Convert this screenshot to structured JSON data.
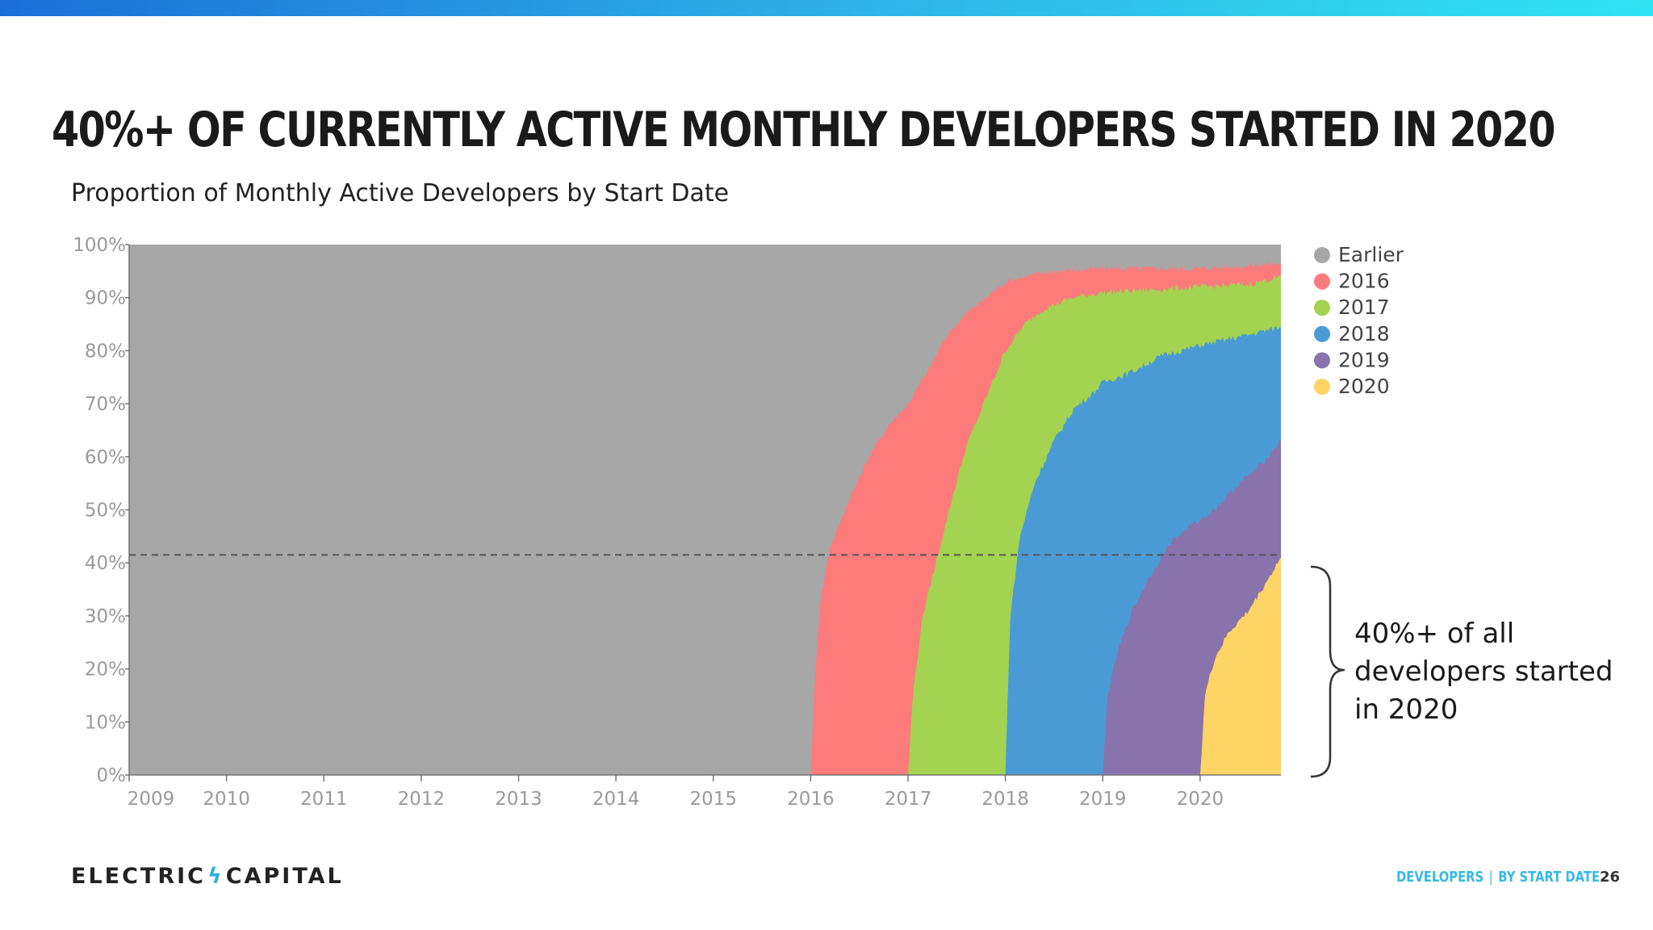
{
  "slide": {
    "title": "40%+ of currently active monthly developers started in 2020",
    "annotation": "40%+ of all developers started in 2020",
    "brand": {
      "left": "ELECTRIC",
      "right": "CAPITAL"
    },
    "footer": {
      "section": "Developers",
      "subsection": "By Start Date",
      "separator": "|"
    },
    "page_number": "26"
  },
  "chart_data": {
    "type": "area",
    "title": "Proportion of Monthly Active Developers by Start Date",
    "xlabel": "",
    "ylabel": "",
    "xlim": [
      2009,
      2020.83
    ],
    "ylim": [
      0,
      100
    ],
    "x_ticks": [
      "2009",
      "2010",
      "2011",
      "2012",
      "2013",
      "2014",
      "2015",
      "2016",
      "2017",
      "2018",
      "2019",
      "2020"
    ],
    "y_ticks": [
      "0%",
      "10%",
      "20%",
      "30%",
      "40%",
      "50%",
      "60%",
      "70%",
      "80%",
      "90%",
      "100%"
    ],
    "stacking": "cumulative_share",
    "series": [
      {
        "name": "Earlier",
        "color": "#a7a7a7",
        "start": 2009,
        "points": [
          [
            2009,
            100
          ],
          [
            2020.83,
            100
          ]
        ]
      },
      {
        "name": "2016",
        "color": "#fd7b7b",
        "start": 2016,
        "points": [
          [
            2016,
            0
          ],
          [
            2016.05,
            20
          ],
          [
            2016.1,
            33
          ],
          [
            2016.2,
            43
          ],
          [
            2016.4,
            52
          ],
          [
            2016.6,
            60
          ],
          [
            2016.8,
            66
          ],
          [
            2017.0,
            70
          ],
          [
            2017.2,
            76
          ],
          [
            2017.4,
            83
          ],
          [
            2017.6,
            87
          ],
          [
            2017.8,
            90
          ],
          [
            2018.0,
            93
          ],
          [
            2018.2,
            94
          ],
          [
            2018.5,
            95
          ],
          [
            2019.0,
            95.5
          ],
          [
            2019.5,
            95.5
          ],
          [
            2020.0,
            95.5
          ],
          [
            2020.5,
            96
          ],
          [
            2020.83,
            96.5
          ]
        ]
      },
      {
        "name": "2017",
        "color": "#a3d351",
        "start": 2017,
        "points": [
          [
            2017,
            0
          ],
          [
            2017.05,
            15
          ],
          [
            2017.15,
            30
          ],
          [
            2017.3,
            41
          ],
          [
            2017.45,
            52
          ],
          [
            2017.6,
            62
          ],
          [
            2017.8,
            71
          ],
          [
            2018.0,
            80
          ],
          [
            2018.2,
            85
          ],
          [
            2018.4,
            88
          ],
          [
            2018.7,
            90
          ],
          [
            2019.0,
            91
          ],
          [
            2019.5,
            91.5
          ],
          [
            2020.0,
            92
          ],
          [
            2020.5,
            92.5
          ],
          [
            2020.83,
            94
          ]
        ]
      },
      {
        "name": "2018",
        "color": "#4a9bd5",
        "start": 2018,
        "points": [
          [
            2018,
            0
          ],
          [
            2018.05,
            30
          ],
          [
            2018.15,
            45
          ],
          [
            2018.3,
            55
          ],
          [
            2018.5,
            63
          ],
          [
            2018.7,
            69
          ],
          [
            2018.9,
            72
          ],
          [
            2019.0,
            74
          ],
          [
            2019.3,
            76
          ],
          [
            2019.6,
            79
          ],
          [
            2020.0,
            81
          ],
          [
            2020.5,
            83
          ],
          [
            2020.83,
            84.5
          ]
        ]
      },
      {
        "name": "2019",
        "color": "#8873ac",
        "start": 2019,
        "points": [
          [
            2019,
            0
          ],
          [
            2019.05,
            15
          ],
          [
            2019.15,
            23
          ],
          [
            2019.3,
            31
          ],
          [
            2019.5,
            38
          ],
          [
            2019.7,
            44
          ],
          [
            2019.9,
            47
          ],
          [
            2020.0,
            48
          ],
          [
            2020.2,
            51
          ],
          [
            2020.4,
            55
          ],
          [
            2020.6,
            58
          ],
          [
            2020.83,
            63
          ]
        ]
      },
      {
        "name": "2020",
        "color": "#fed465",
        "start": 2020,
        "points": [
          [
            2020,
            0
          ],
          [
            2020.05,
            15
          ],
          [
            2020.15,
            22
          ],
          [
            2020.3,
            27
          ],
          [
            2020.5,
            31
          ],
          [
            2020.7,
            37
          ],
          [
            2020.83,
            41
          ]
        ]
      }
    ],
    "reference_line": {
      "y": 41.5,
      "style": "dashed",
      "color": "#555555"
    },
    "grid": false,
    "legend_position": "right"
  }
}
